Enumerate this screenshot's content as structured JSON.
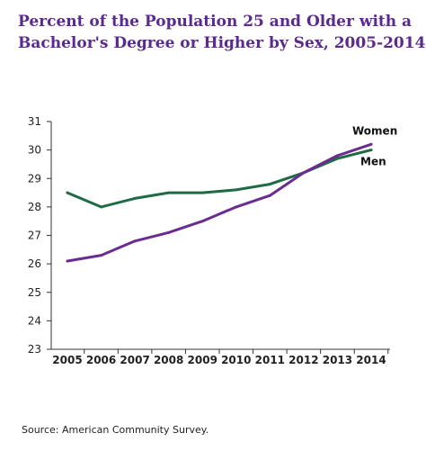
{
  "chart_data": {
    "type": "line",
    "title_lines": [
      "Percent of the Population 25 and Older with a",
      "Bachelor's Degree or Higher by Sex, 2005-2014"
    ],
    "x": [
      "2005",
      "2006",
      "2007",
      "2008",
      "2009",
      "2010",
      "2011",
      "2012",
      "2013",
      "2014"
    ],
    "series": [
      {
        "name": "Women",
        "color": "#6b2c91",
        "values": [
          26.1,
          26.3,
          26.8,
          27.1,
          27.5,
          28.0,
          28.4,
          29.2,
          29.8,
          30.2
        ]
      },
      {
        "name": "Men",
        "color": "#1e6b45",
        "values": [
          28.5,
          28.0,
          28.3,
          28.5,
          28.5,
          28.6,
          28.8,
          29.2,
          29.7,
          30.0
        ]
      }
    ],
    "ylim": [
      23,
      31
    ],
    "yticks": [
      "23",
      "24",
      "25",
      "26",
      "27",
      "28",
      "29",
      "30",
      "31"
    ],
    "grid": false,
    "legend": "direct labels at line ends"
  },
  "source": "Source: American Community Survey."
}
